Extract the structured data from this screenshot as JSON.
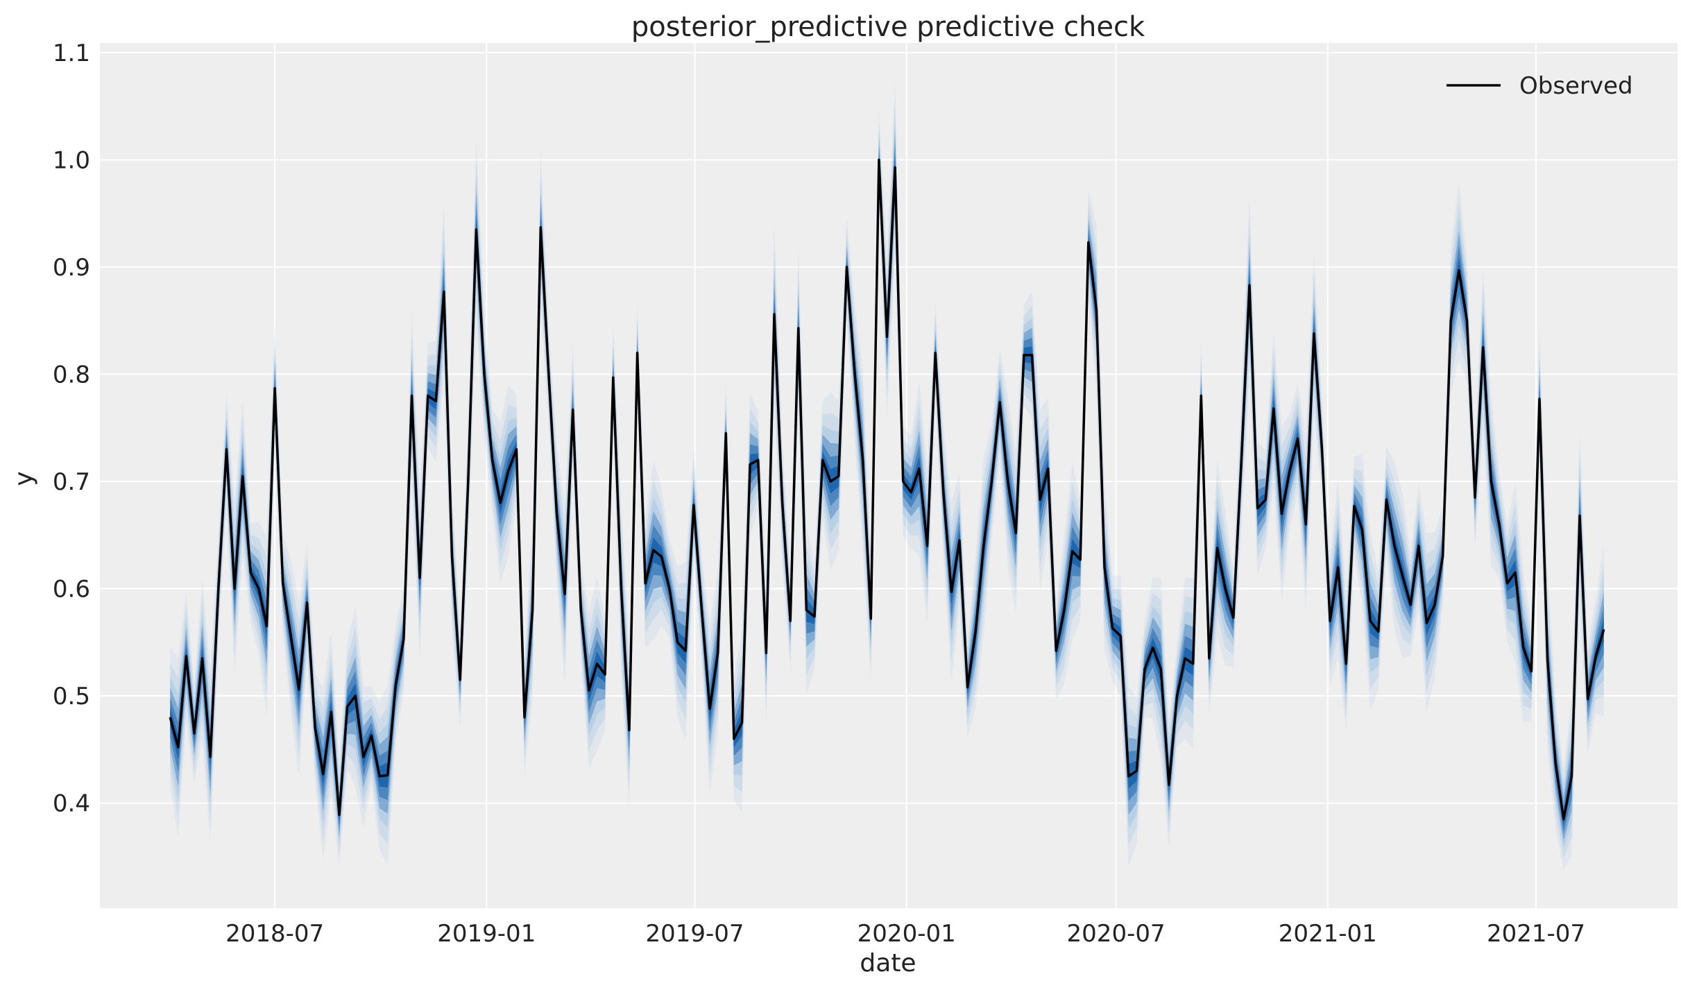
{
  "chart_data": {
    "type": "line",
    "title": "posterior_predictive predictive check",
    "xlabel": "date",
    "ylabel": "y",
    "xlim": [
      "2018-01-30",
      "2021-11-01"
    ],
    "ylim": [
      0.302,
      1.109
    ],
    "x_ticks": [
      "2018-07",
      "2019-01",
      "2019-07",
      "2020-01",
      "2020-07",
      "2021-01",
      "2021-07"
    ],
    "y_ticks": [
      "0.4",
      "0.5",
      "0.6",
      "0.7",
      "0.8",
      "0.9",
      "1.0",
      "1.1"
    ],
    "grid": true,
    "legend_position": "top-right",
    "colors": {
      "observed": "#000000",
      "predictive": "#0b5aa8",
      "background": "#eeeeee",
      "grid": "#ffffff"
    },
    "series": [
      {
        "name": "Observed",
        "values": [
          0.48,
          0.452,
          0.537,
          0.465,
          0.535,
          0.443,
          0.6,
          0.73,
          0.6,
          0.705,
          0.615,
          0.6,
          0.565,
          0.787,
          0.605,
          0.555,
          0.506,
          0.587,
          0.47,
          0.427,
          0.485,
          0.389,
          0.49,
          0.5,
          0.443,
          0.463,
          0.425,
          0.426,
          0.51,
          0.553,
          0.78,
          0.61,
          0.78,
          0.775,
          0.877,
          0.63,
          0.515,
          0.7,
          0.935,
          0.8,
          0.72,
          0.68,
          0.71,
          0.73,
          0.48,
          0.58,
          0.937,
          0.8,
          0.67,
          0.595,
          0.767,
          0.58,
          0.505,
          0.53,
          0.52,
          0.797,
          0.6,
          0.468,
          0.82,
          0.605,
          0.636,
          0.63,
          0.6,
          0.55,
          0.542,
          0.678,
          0.58,
          0.488,
          0.54,
          0.745,
          0.46,
          0.475,
          0.716,
          0.72,
          0.54,
          0.856,
          0.68,
          0.57,
          0.843,
          0.58,
          0.574,
          0.72,
          0.7,
          0.705,
          0.9,
          0.8,
          0.72,
          0.572,
          1.0,
          0.835,
          0.993,
          0.7,
          0.69,
          0.712,
          0.64,
          0.82,
          0.69,
          0.597,
          0.645,
          0.508,
          0.56,
          0.64,
          0.7,
          0.774,
          0.7,
          0.652,
          0.818,
          0.818,
          0.683,
          0.712,
          0.542,
          0.58,
          0.635,
          0.627,
          0.923,
          0.86,
          0.62,
          0.563,
          0.556,
          0.425,
          0.43,
          0.525,
          0.545,
          0.525,
          0.417,
          0.5,
          0.535,
          0.53,
          0.78,
          0.535,
          0.638,
          0.6,
          0.573,
          0.72,
          0.883,
          0.675,
          0.683,
          0.768,
          0.67,
          0.71,
          0.74,
          0.66,
          0.838,
          0.73,
          0.57,
          0.62,
          0.53,
          0.677,
          0.655,
          0.57,
          0.56,
          0.683,
          0.64,
          0.612,
          0.585,
          0.64,
          0.568,
          0.585,
          0.63,
          0.85,
          0.897,
          0.85,
          0.685,
          0.825,
          0.7,
          0.66,
          0.605,
          0.615,
          0.545,
          0.523,
          0.777,
          0.533,
          0.437,
          0.385,
          0.425,
          0.668,
          0.497,
          0.537,
          0.562
        ]
      }
    ],
    "x": [
      "2018-04-01",
      "2018-04-08",
      "2018-04-15",
      "2018-04-22",
      "2018-04-29",
      "2018-05-06",
      "2018-05-13",
      "2018-05-20",
      "2018-05-27",
      "2018-06-03",
      "2018-06-10",
      "2018-06-17",
      "2018-06-24",
      "2018-07-01",
      "2018-07-08",
      "2018-07-15",
      "2018-07-22",
      "2018-07-29",
      "2018-08-05",
      "2018-08-12",
      "2018-08-19",
      "2018-08-26",
      "2018-09-02",
      "2018-09-09",
      "2018-09-16",
      "2018-09-23",
      "2018-09-30",
      "2018-10-07",
      "2018-10-14",
      "2018-10-21",
      "2018-10-28",
      "2018-11-04",
      "2018-11-11",
      "2018-11-18",
      "2018-11-25",
      "2018-12-02",
      "2018-12-09",
      "2018-12-16",
      "2018-12-23",
      "2018-12-30",
      "2019-01-06",
      "2019-01-13",
      "2019-01-20",
      "2019-01-27",
      "2019-02-03",
      "2019-02-10",
      "2019-02-17",
      "2019-02-24",
      "2019-03-03",
      "2019-03-10",
      "2019-03-17",
      "2019-03-24",
      "2019-03-31",
      "2019-04-07",
      "2019-04-14",
      "2019-04-21",
      "2019-04-28",
      "2019-05-05",
      "2019-05-12",
      "2019-05-19",
      "2019-05-26",
      "2019-06-02",
      "2019-06-09",
      "2019-06-16",
      "2019-06-23",
      "2019-06-30",
      "2019-07-07",
      "2019-07-14",
      "2019-07-21",
      "2019-07-28",
      "2019-08-04",
      "2019-08-11",
      "2019-08-18",
      "2019-08-25",
      "2019-09-01",
      "2019-09-08",
      "2019-09-15",
      "2019-09-22",
      "2019-09-29",
      "2019-10-06",
      "2019-10-13",
      "2019-10-20",
      "2019-10-27",
      "2019-11-03",
      "2019-11-10",
      "2019-11-17",
      "2019-11-24",
      "2019-12-01",
      "2019-12-08",
      "2019-12-15",
      "2019-12-22",
      "2019-12-29",
      "2020-01-05",
      "2020-01-12",
      "2020-01-19",
      "2020-01-26",
      "2020-02-02",
      "2020-02-09",
      "2020-02-16",
      "2020-02-23",
      "2020-03-01",
      "2020-03-08",
      "2020-03-15",
      "2020-03-22",
      "2020-03-29",
      "2020-04-05",
      "2020-04-12",
      "2020-04-19",
      "2020-04-26",
      "2020-05-03",
      "2020-05-10",
      "2020-05-17",
      "2020-05-24",
      "2020-05-31",
      "2020-06-07",
      "2020-06-14",
      "2020-06-21",
      "2020-06-28",
      "2020-07-05",
      "2020-07-12",
      "2020-07-19",
      "2020-07-26",
      "2020-08-02",
      "2020-08-09",
      "2020-08-16",
      "2020-08-23",
      "2020-08-30",
      "2020-09-06",
      "2020-09-13",
      "2020-09-20",
      "2020-09-27",
      "2020-10-04",
      "2020-10-11",
      "2020-10-18",
      "2020-10-25",
      "2020-11-01",
      "2020-11-08",
      "2020-11-15",
      "2020-11-22",
      "2020-11-29",
      "2020-12-06",
      "2020-12-13",
      "2020-12-20",
      "2020-12-27",
      "2021-01-03",
      "2021-01-10",
      "2021-01-17",
      "2021-01-24",
      "2021-01-31",
      "2021-02-07",
      "2021-02-14",
      "2021-02-21",
      "2021-02-28",
      "2021-03-07",
      "2021-03-14",
      "2021-03-21",
      "2021-03-28",
      "2021-04-04",
      "2021-04-11",
      "2021-04-18",
      "2021-04-25",
      "2021-05-02",
      "2021-05-09",
      "2021-05-16",
      "2021-05-23",
      "2021-05-30",
      "2021-06-06",
      "2021-06-13",
      "2021-06-20",
      "2021-06-27",
      "2021-07-04",
      "2021-07-11",
      "2021-07-18",
      "2021-07-25",
      "2021-08-01",
      "2021-08-08",
      "2021-08-15",
      "2021-08-22",
      "2021-08-29"
    ]
  }
}
